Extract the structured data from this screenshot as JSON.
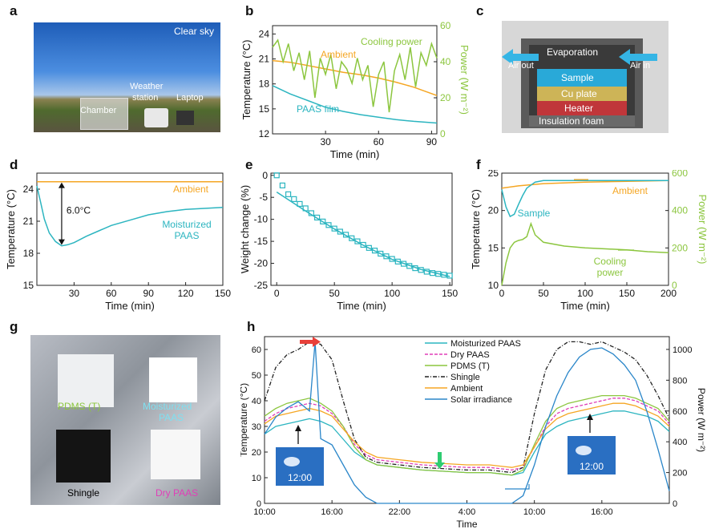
{
  "panels": {
    "a": "a",
    "b": "b",
    "c": "c",
    "d": "d",
    "e": "e",
    "f": "f",
    "g": "g",
    "h": "h"
  },
  "photo_a": {
    "sky": "Clear sky",
    "weather": "Weather",
    "station": "station",
    "laptop": "Laptop",
    "chamber": "Chamber"
  },
  "diagram_c": {
    "evaporation": "Evaporation",
    "air_out": "Air out",
    "air_in": "Air in",
    "sample": "Sample",
    "cu_plate": "Cu plate",
    "heater": "Heater",
    "insulation": "Insulation foam"
  },
  "photo_g": {
    "pdms": "PDMS (T)",
    "moist1": "Moisturized",
    "moist2": "PAAS",
    "shingle": "Shingle",
    "dry": "Dry PAAS"
  },
  "colors": {
    "cyan": "#2cb5c0",
    "orange": "#f5a623",
    "green": "#8cc63f",
    "magenta": "#e03fb8",
    "black": "#222222",
    "blue": "#2a86c9",
    "red": "#e8403a",
    "mark_green": "#2ecc71"
  },
  "chart_data": [
    {
      "id": "b",
      "type": "line",
      "xlabel": "Time (min)",
      "ylabel": "Temperature (°C)",
      "y2label": "Power (W m⁻²)",
      "xlim": [
        0,
        93
      ],
      "ylim": [
        12,
        25
      ],
      "y2lim": [
        0,
        60
      ],
      "xticks": [
        30,
        60,
        90
      ],
      "yticks": [
        12,
        15,
        18,
        21,
        24
      ],
      "y2ticks": [
        0,
        20,
        40,
        60
      ],
      "series": [
        {
          "name": "Ambient",
          "axis": "left",
          "color": "orange",
          "x": [
            0,
            10,
            20,
            30,
            40,
            50,
            60,
            70,
            80,
            93
          ],
          "y": [
            20.8,
            20.6,
            20.2,
            19.8,
            19.4,
            19.1,
            18.7,
            18.2,
            17.6,
            16.6
          ]
        },
        {
          "name": "PAAS film",
          "axis": "left",
          "color": "cyan",
          "x": [
            0,
            10,
            20,
            30,
            40,
            50,
            60,
            70,
            80,
            93
          ],
          "y": [
            17.8,
            16.8,
            16.0,
            15.2,
            14.7,
            14.3,
            14.0,
            13.7,
            13.5,
            13.3
          ]
        },
        {
          "name": "Cooling power",
          "axis": "right",
          "color": "green",
          "x": [
            0,
            3,
            6,
            9,
            12,
            15,
            18,
            21,
            24,
            27,
            30,
            33,
            36,
            39,
            42,
            45,
            48,
            51,
            54,
            57,
            60,
            63,
            66,
            69,
            72,
            75,
            78,
            81,
            84,
            87,
            90,
            93
          ],
          "y": [
            48,
            52,
            40,
            50,
            35,
            45,
            30,
            46,
            20,
            42,
            33,
            44,
            25,
            40,
            36,
            28,
            42,
            30,
            38,
            15,
            33,
            40,
            12,
            35,
            44,
            30,
            48,
            26,
            45,
            38,
            50,
            42
          ]
        }
      ],
      "labels": [
        {
          "text": "Ambient",
          "color": "orange"
        },
        {
          "text": "Cooling power",
          "color": "green"
        },
        {
          "text": "PAAS film",
          "color": "cyan"
        }
      ]
    },
    {
      "id": "d",
      "type": "line",
      "xlabel": "Time (min)",
      "ylabel": "Temperature (°C)",
      "xlim": [
        0,
        150
      ],
      "ylim": [
        15,
        25.5
      ],
      "xticks": [
        30,
        60,
        90,
        120,
        150
      ],
      "yticks": [
        15,
        18,
        21,
        24
      ],
      "series": [
        {
          "name": "Ambient",
          "color": "orange",
          "x": [
            0,
            30,
            60,
            90,
            120,
            150
          ],
          "y": [
            24.7,
            24.7,
            24.7,
            24.7,
            24.7,
            24.7
          ]
        },
        {
          "name": "Moisturized PAAS",
          "color": "cyan",
          "x": [
            0,
            3,
            6,
            10,
            15,
            20,
            25,
            30,
            40,
            50,
            60,
            75,
            90,
            105,
            120,
            135,
            150
          ],
          "y": [
            24.3,
            22.8,
            21.2,
            19.9,
            19.1,
            18.7,
            18.8,
            19.0,
            19.6,
            20.1,
            20.6,
            21.1,
            21.6,
            21.9,
            22.1,
            22.2,
            22.3
          ]
        }
      ],
      "annotation": "6.0°C",
      "labels": [
        {
          "text": "Ambient",
          "color": "orange"
        },
        {
          "text": "Moisturized",
          "color": "cyan"
        },
        {
          "text": "PAAS",
          "color": "cyan"
        }
      ]
    },
    {
      "id": "e",
      "type": "scatter",
      "xlabel": "Time (min)",
      "ylabel": "Weight change (%)",
      "xlim": [
        -5,
        152
      ],
      "ylim": [
        -25,
        0.5
      ],
      "xticks": [
        0,
        50,
        100,
        150
      ],
      "yticks": [
        0,
        -5,
        -10,
        -15,
        -20,
        -25
      ],
      "points_x": [
        0,
        5,
        10,
        15,
        20,
        25,
        30,
        35,
        40,
        45,
        50,
        55,
        60,
        65,
        70,
        75,
        80,
        85,
        90,
        95,
        100,
        105,
        110,
        115,
        120,
        125,
        130,
        135,
        140,
        145,
        150
      ],
      "points_y": [
        0,
        -2.3,
        -4.3,
        -5.4,
        -6.5,
        -7.5,
        -8.6,
        -9.6,
        -10.5,
        -11.3,
        -12.1,
        -12.8,
        -13.5,
        -14.3,
        -15.0,
        -15.8,
        -16.5,
        -17.1,
        -17.8,
        -18.4,
        -19.0,
        -19.6,
        -20.1,
        -20.6,
        -21.1,
        -21.5,
        -21.9,
        -22.2,
        -22.4,
        -22.6,
        -22.8
      ],
      "fit_x": [
        0,
        25,
        50,
        75,
        100,
        125,
        150
      ],
      "fit_y": [
        -3.8,
        -8.1,
        -12.2,
        -15.9,
        -19.1,
        -21.4,
        -23.0
      ],
      "color": "cyan"
    },
    {
      "id": "f",
      "type": "line",
      "xlabel": "Time (min)",
      "ylabel": "Temperature (°C)",
      "y2label": "Power (W m⁻²)",
      "xlim": [
        0,
        200
      ],
      "ylim": [
        10,
        25
      ],
      "y2lim": [
        0,
        600
      ],
      "xticks": [
        0,
        50,
        100,
        150,
        200
      ],
      "yticks": [
        10,
        15,
        20,
        25
      ],
      "y2ticks": [
        0,
        200,
        400,
        600
      ],
      "series": [
        {
          "name": "Ambient",
          "axis": "left",
          "color": "orange",
          "x": [
            0,
            20,
            50,
            100,
            150,
            200
          ],
          "y": [
            23.0,
            23.3,
            23.6,
            23.8,
            23.9,
            24.0
          ]
        },
        {
          "name": "Sample",
          "axis": "left",
          "color": "cyan",
          "x": [
            0,
            5,
            10,
            15,
            20,
            25,
            30,
            40,
            50,
            100,
            150,
            200
          ],
          "y": [
            22.8,
            20.5,
            19.2,
            19.5,
            20.8,
            22.0,
            23.0,
            23.8,
            24.0,
            24.0,
            24.0,
            24.0
          ]
        },
        {
          "name": "Cooling power",
          "axis": "right",
          "color": "green",
          "x": [
            0,
            5,
            10,
            15,
            20,
            25,
            30,
            35,
            40,
            45,
            50,
            75,
            100,
            125,
            150,
            175,
            200
          ],
          "y": [
            0,
            120,
            200,
            230,
            240,
            245,
            260,
            330,
            270,
            250,
            230,
            210,
            200,
            195,
            190,
            180,
            175
          ]
        }
      ],
      "labels": [
        {
          "text": "Ambient",
          "color": "orange"
        },
        {
          "text": "Sample",
          "color": "cyan"
        },
        {
          "text": "Cooling",
          "color": "green"
        },
        {
          "text": "power",
          "color": "green"
        }
      ]
    },
    {
      "id": "h",
      "type": "line",
      "xlabel": "Time",
      "ylabel": "Temperature (°C)",
      "y2label": "Power (W m⁻²)",
      "xlim": [
        10,
        46
      ],
      "ylim": [
        0,
        65
      ],
      "y2lim": [
        0,
        1083
      ],
      "xticks": [
        10,
        16,
        22,
        28,
        34,
        40,
        46
      ],
      "xticklabels": [
        "10:00",
        "16:00",
        "22:00",
        "4:00",
        "10:00",
        "16:00",
        ""
      ],
      "yticks": [
        0,
        10,
        20,
        30,
        40,
        50,
        60
      ],
      "y2ticks": [
        0,
        200,
        400,
        600,
        800,
        1000
      ],
      "legend": "top-center",
      "series": [
        {
          "name": "Moisturized PAAS",
          "color": "cyan",
          "x": [
            10,
            11,
            12,
            13,
            14,
            15,
            16,
            17,
            18,
            19,
            20,
            22,
            24,
            26,
            28,
            30,
            31,
            32,
            33,
            34,
            35,
            36,
            37,
            38,
            39,
            40,
            41,
            42,
            43,
            44,
            45,
            46
          ],
          "y": [
            27,
            30,
            31,
            32,
            33,
            32,
            30,
            25,
            20,
            17,
            15,
            14,
            13,
            12.5,
            12,
            12,
            11.5,
            11,
            12,
            20,
            27,
            30,
            32,
            33,
            34,
            35,
            36,
            36,
            35,
            34,
            32,
            28
          ]
        },
        {
          "name": "Dry PAAS",
          "color": "magenta",
          "x": [
            10,
            11,
            12,
            13,
            14,
            15,
            16,
            17,
            18,
            19,
            20,
            22,
            24,
            26,
            28,
            30,
            31,
            32,
            33,
            34,
            35,
            36,
            37,
            38,
            39,
            40,
            41,
            42,
            43,
            44,
            45,
            46
          ],
          "y": [
            32,
            35,
            37,
            38,
            39,
            38,
            35,
            30,
            23,
            19,
            17,
            16,
            15,
            14.5,
            14,
            14,
            13.5,
            13,
            14,
            22,
            30,
            35,
            37,
            38,
            39,
            40,
            41,
            41,
            40,
            38,
            36,
            31
          ]
        },
        {
          "name": "PDMS (T)",
          "color": "green",
          "x": [
            10,
            11,
            12,
            13,
            14,
            15,
            16,
            17,
            18,
            19,
            20,
            22,
            24,
            26,
            28,
            30,
            31,
            32,
            33,
            34,
            35,
            36,
            37,
            38,
            39,
            40,
            41,
            42,
            43,
            44,
            45,
            46
          ],
          "y": [
            34,
            37,
            39,
            40,
            41,
            39,
            36,
            30,
            22,
            17,
            15,
            14,
            13,
            12.5,
            12,
            12,
            11.5,
            11,
            13,
            23,
            32,
            37,
            39,
            40,
            41,
            42,
            42,
            42,
            41,
            39,
            37,
            32
          ]
        },
        {
          "name": "Shingle",
          "color": "black",
          "x": [
            10,
            11,
            12,
            13,
            14,
            15,
            16,
            17,
            18,
            19,
            20,
            22,
            24,
            26,
            28,
            30,
            31,
            32,
            33,
            34,
            35,
            36,
            37,
            38,
            39,
            40,
            41,
            42,
            43,
            44,
            45,
            46
          ],
          "y": [
            40,
            53,
            58,
            60,
            63,
            62,
            56,
            40,
            25,
            18,
            16,
            15,
            14,
            13.5,
            13,
            13,
            12.5,
            12,
            14,
            35,
            52,
            60,
            63,
            63,
            62,
            63,
            61,
            59,
            56,
            50,
            42,
            33
          ]
        },
        {
          "name": "Ambient",
          "color": "orange",
          "x": [
            10,
            11,
            12,
            13,
            14,
            15,
            16,
            17,
            18,
            19,
            20,
            22,
            24,
            26,
            28,
            30,
            31,
            32,
            33,
            34,
            35,
            36,
            37,
            38,
            39,
            40,
            41,
            42,
            43,
            44,
            45,
            46
          ],
          "y": [
            31,
            34,
            35,
            36,
            37,
            36,
            34,
            29,
            24,
            20,
            18,
            17,
            16,
            15.5,
            15,
            15,
            14.5,
            14,
            15,
            22,
            29,
            33,
            35,
            36,
            37,
            38,
            39,
            39,
            38,
            36,
            34,
            30
          ]
        },
        {
          "name": "Solar irradiance",
          "color": "blue",
          "axis": "right",
          "x": [
            10,
            11,
            12,
            13,
            14,
            14.5,
            15,
            16,
            17,
            18,
            19,
            20,
            22,
            28,
            32,
            33,
            34,
            35,
            36,
            37,
            38,
            39,
            40,
            41,
            42,
            43,
            44,
            45,
            46
          ],
          "y": [
            450,
            560,
            620,
            660,
            600,
            1050,
            420,
            380,
            250,
            120,
            40,
            0,
            0,
            0,
            0,
            50,
            250,
            500,
            700,
            850,
            950,
            1000,
            1010,
            970,
            900,
            800,
            600,
            350,
            80
          ]
        }
      ],
      "insets": [
        {
          "time": "12:00"
        },
        {
          "time": "12:00"
        }
      ]
    }
  ]
}
